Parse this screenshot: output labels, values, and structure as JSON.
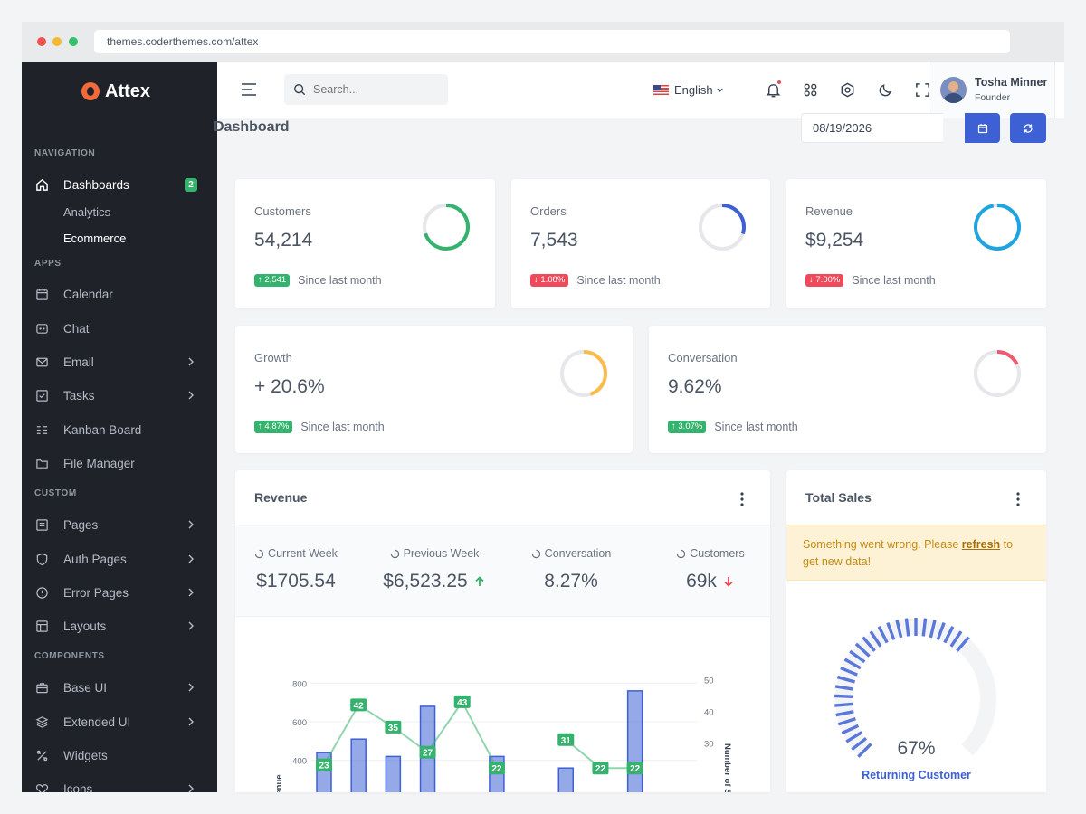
{
  "browser": {
    "url": "themes.coderthemes.com/attex"
  },
  "brand": {
    "name": "Attex"
  },
  "sidebar": {
    "sections": {
      "navigation": "NAVIGATION",
      "apps": "APPS",
      "custom": "CUSTOM",
      "components": "COMPONENTS"
    },
    "dashboards": {
      "label": "Dashboards",
      "badge": "2",
      "sub": [
        "Analytics",
        "Ecommerce"
      ]
    },
    "apps": [
      "Calendar",
      "Chat",
      "Email",
      "Tasks",
      "Kanban Board",
      "File Manager"
    ],
    "custom": [
      "Pages",
      "Auth Pages",
      "Error Pages",
      "Layouts"
    ],
    "components": [
      "Base UI",
      "Extended UI",
      "Widgets",
      "Icons"
    ]
  },
  "topbar": {
    "search_placeholder": "Search...",
    "language": "English",
    "user": {
      "name": "Tosha Minner",
      "role": "Founder"
    }
  },
  "page": {
    "title": "Dashboard",
    "date": "08/19/2026"
  },
  "stats": [
    {
      "label": "Customers",
      "value": "54,214",
      "change": "2,541",
      "dir": "up",
      "note": "Since last month",
      "color": "#35b26d",
      "percent": 0.7
    },
    {
      "label": "Orders",
      "value": "7,543",
      "change": "1.08%",
      "dir": "down",
      "note": "Since last month",
      "color": "#3e60d5",
      "percent": 0.3
    },
    {
      "label": "Revenue",
      "value": "$9,254",
      "change": "7.00%",
      "dir": "down",
      "note": "Since last month",
      "color": "#1ea5e0",
      "percent": 0.97
    },
    {
      "label": "Growth",
      "value": "+ 20.6%",
      "change": "4.87%",
      "dir": "up",
      "note": "Since last month",
      "color": "#f8bd4d",
      "percent": 0.45
    },
    {
      "label": "Conversation",
      "value": "9.62%",
      "change": "3.07%",
      "dir": "up",
      "note": "Since last month",
      "color": "#ef5a70",
      "percent": 0.18
    }
  ],
  "revenue": {
    "title": "Revenue",
    "metrics": [
      {
        "label": "Current Week",
        "value": "$1705.54",
        "trend": ""
      },
      {
        "label": "Previous Week",
        "value": "$6,523.25",
        "trend": "up"
      },
      {
        "label": "Conversation",
        "value": "8.27%",
        "trend": ""
      },
      {
        "label": "Customers",
        "value": "69k",
        "trend": "down"
      }
    ]
  },
  "chart_data": {
    "type": "bar",
    "ylabel": "Net Revenue",
    "y2label": "Number of Sales",
    "y_ticks": [
      "800",
      "600",
      "400"
    ],
    "y2_ticks": [
      "50",
      "40",
      "30"
    ],
    "ylim": [
      0,
      900
    ],
    "y2lim": [
      0,
      55
    ],
    "bar_values": [
      440,
      510,
      420,
      680,
      0,
      420,
      0,
      360,
      0,
      760,
      0
    ],
    "line_values": [
      23,
      42,
      35,
      27,
      43,
      22,
      0,
      31,
      22,
      22,
      0
    ],
    "line_labels": [
      "23",
      "42",
      "35",
      "27",
      "43",
      "22",
      "",
      "31",
      "22",
      "22",
      ""
    ],
    "bar_color": "#3e60d5",
    "line_color": "#35b26d"
  },
  "total_sales": {
    "title": "Total Sales",
    "alert_prefix": "Something went wrong. Please ",
    "alert_link": "refresh",
    "alert_suffix": " to get new data!",
    "value": "67%",
    "label": "Returning Customer",
    "percent": 0.67
  }
}
